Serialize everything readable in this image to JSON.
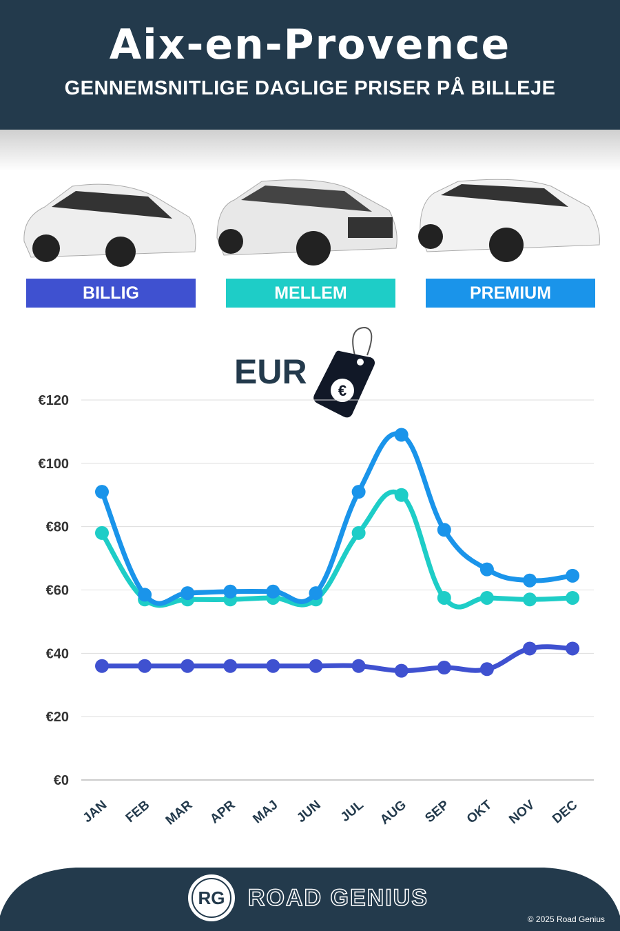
{
  "header": {
    "title": "Aix-en-Provence",
    "subtitle": "GENNEMSNITLIGE DAGLIGE PRISER PÅ BILLEJE"
  },
  "categories_legend": [
    {
      "label": "BILLIG",
      "color": "#3f51d0"
    },
    {
      "label": "MELLEM",
      "color": "#1ecdc7"
    },
    {
      "label": "PREMIUM",
      "color": "#1a94ea"
    }
  ],
  "currency": {
    "label": "EUR",
    "icon": "euro-price-tag-icon"
  },
  "chart_data": {
    "type": "line",
    "categories": [
      "JAN",
      "FEB",
      "MAR",
      "APR",
      "MAJ",
      "JUN",
      "JUL",
      "AUG",
      "SEP",
      "OKT",
      "NOV",
      "DEC"
    ],
    "ylim": [
      0,
      120
    ],
    "yticks": [
      0,
      20,
      40,
      60,
      80,
      100,
      120
    ],
    "ytick_labels": [
      "€0",
      "€20",
      "€40",
      "€60",
      "€80",
      "€100",
      "€120"
    ],
    "grid": true,
    "series": [
      {
        "key": "billig",
        "color": "#3f51d0",
        "values": [
          36,
          36,
          36,
          36,
          36,
          36,
          36,
          34.5,
          35.5,
          35,
          41.5,
          41.5
        ]
      },
      {
        "key": "mellem",
        "color": "#1ecdc7",
        "values": [
          78,
          57,
          57,
          57,
          57.5,
          57,
          78,
          90,
          57.5,
          57.5,
          57,
          57.5
        ]
      },
      {
        "key": "premium",
        "color": "#1a94ea",
        "values": [
          91,
          58.5,
          59,
          59.5,
          59.5,
          59,
          91,
          109,
          79,
          66.5,
          63,
          64.5
        ]
      }
    ]
  },
  "footer": {
    "logo": "RG",
    "brand": "ROAD GENIUS",
    "copyright": "© 2025 Road Genius"
  }
}
